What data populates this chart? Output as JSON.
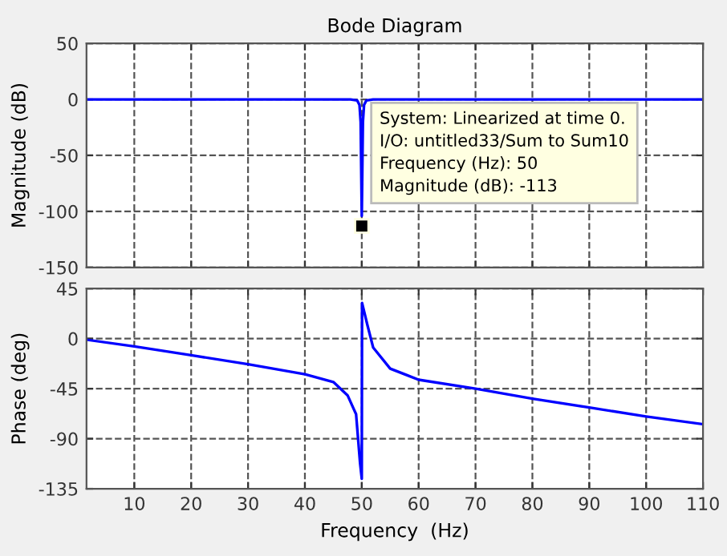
{
  "chart_data": [
    {
      "type": "line",
      "title": "Bode Diagram",
      "ylabel": "Magnitude (dB)",
      "series": [
        {
          "color": "#0000ff",
          "x": [
            1.6,
            48,
            49.2,
            49.6,
            49.8,
            49.9,
            50,
            50.1,
            50.2,
            50.4,
            50.8,
            52,
            110
          ],
          "values": [
            0,
            0,
            -1,
            -5,
            -20,
            -62,
            -104,
            -62,
            -20,
            -5,
            -1,
            0,
            0
          ]
        }
      ],
      "xlim": [
        1.6,
        110
      ],
      "xticks": [
        10,
        20,
        30,
        40,
        50,
        60,
        70,
        80,
        90,
        100,
        110
      ],
      "ylim": [
        -150,
        50
      ],
      "yticks": [
        -150,
        -100,
        -50,
        0,
        50
      ],
      "tick_labels": "y",
      "grid": true,
      "marker": "none",
      "line_style": "solid",
      "annotations": [
        {
          "text": "System: Linearized at time 0.\nI/O: untitled33/Sum to Sum10\nFrequency (Hz): 50\nMagnitude (dB): -113",
          "x": 50,
          "y": -113
        }
      ]
    },
    {
      "type": "line",
      "xlabel": "Frequency  (Hz)",
      "ylabel": "Phase (deg)",
      "series": [
        {
          "color": "#0000ff",
          "x": [
            1.6,
            10,
            20,
            30,
            40,
            45,
            47.5,
            49,
            49.7,
            50,
            50.05,
            51,
            52,
            55,
            60,
            70,
            80,
            90,
            100,
            110
          ],
          "values": [
            -1,
            -7,
            -15,
            -23,
            -32,
            -39,
            -51,
            -68,
            -112,
            -126,
            32,
            12,
            -8,
            -27,
            -37,
            -45,
            -54,
            -62,
            -70,
            -77
          ]
        }
      ],
      "xlim": [
        1.6,
        110
      ],
      "xticks": [
        10,
        20,
        30,
        40,
        50,
        60,
        70,
        80,
        90,
        100,
        110
      ],
      "ylim": [
        -135,
        45
      ],
      "yticks": [
        -135,
        -90,
        -45,
        0,
        45
      ],
      "grid": true,
      "marker": "none",
      "line_style": "solid"
    }
  ]
}
